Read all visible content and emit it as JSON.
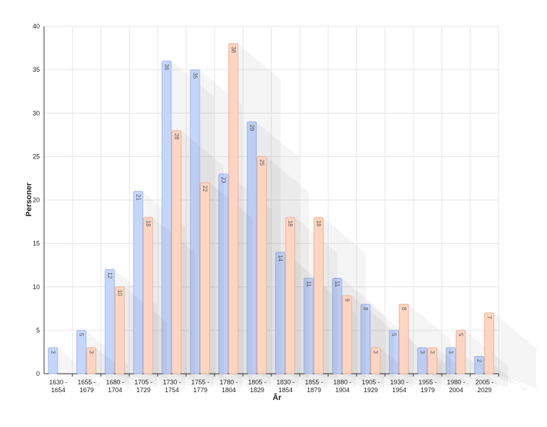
{
  "chart_data": {
    "type": "bar",
    "x_label": "År",
    "y_label": "Personer",
    "categories": [
      "1630 - 1654",
      "1655 - 1679",
      "1680 - 1704",
      "1705 - 1729",
      "1730 - 1754",
      "1755 - 1779",
      "1780 - 1804",
      "1805 - 1829",
      "1830 - 1854",
      "1855 - 1879",
      "1880 - 1904",
      "1905 - 1929",
      "1930 - 1954",
      "1955 - 1979",
      "1980 - 2004",
      "2005 - 2029"
    ],
    "series": [
      {
        "color": "#c5d6fb",
        "stroke": "#9fb8f0",
        "values": [
          3,
          5,
          12,
          21,
          36,
          35,
          23,
          29,
          14,
          11,
          11,
          8,
          5,
          3,
          3,
          2
        ]
      },
      {
        "color": "#fdd5c1",
        "stroke": "#f0b096",
        "values": [
          null,
          3,
          10,
          18,
          28,
          22,
          38,
          25,
          18,
          18,
          9,
          3,
          8,
          3,
          5,
          7
        ]
      }
    ],
    "ylim": [
      0,
      40
    ],
    "yticks": [
      0,
      5,
      10,
      15,
      20,
      25,
      30,
      35,
      40
    ],
    "grid": true
  }
}
